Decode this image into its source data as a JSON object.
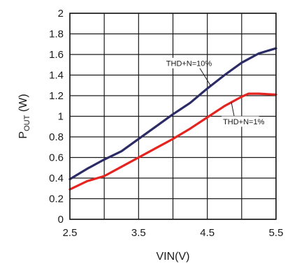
{
  "chart_data": {
    "type": "line",
    "title": "",
    "xlabel": "VIN(V)",
    "ylabel": {
      "main": "P",
      "sub": "OUT",
      "unit": " (W)"
    },
    "xlim": [
      2.5,
      5.5
    ],
    "ylim": [
      0,
      2
    ],
    "xticks": [
      2.5,
      3,
      3.5,
      4,
      4.5,
      5,
      5.5
    ],
    "xtick_labels": [
      "2.5",
      "",
      "3.5",
      "",
      "4.5",
      "",
      "5.5"
    ],
    "yticks": [
      0,
      0.2,
      0.4,
      0.6,
      0.8,
      1,
      1.2,
      1.4,
      1.6,
      1.8,
      2
    ],
    "ytick_labels": [
      "0",
      "0.2",
      "0.4",
      "0.6",
      "0.8",
      "1",
      "1.2",
      "1.4",
      "1.6",
      "1.8",
      "2"
    ],
    "grid": true,
    "legend": "none",
    "series": [
      {
        "name": "THD+N=10%",
        "color": "#2b2b66",
        "x": [
          2.5,
          2.75,
          3.0,
          3.25,
          3.5,
          3.75,
          4.0,
          4.25,
          4.5,
          4.75,
          5.0,
          5.25,
          5.5
        ],
        "y": [
          0.39,
          0.49,
          0.58,
          0.66,
          0.78,
          0.9,
          1.02,
          1.13,
          1.27,
          1.4,
          1.52,
          1.61,
          1.66
        ]
      },
      {
        "name": "THD+N=1%",
        "color": "#e52420",
        "x": [
          2.5,
          2.75,
          3.0,
          3.25,
          3.5,
          3.75,
          4.0,
          4.25,
          4.5,
          4.75,
          5.0,
          5.1,
          5.25,
          5.5
        ],
        "y": [
          0.29,
          0.37,
          0.42,
          0.51,
          0.6,
          0.69,
          0.78,
          0.88,
          0.99,
          1.1,
          1.19,
          1.22,
          1.22,
          1.21
        ]
      }
    ],
    "annotations": [
      {
        "text": "THD+N=10%",
        "series": 0,
        "at_x": 4.55
      },
      {
        "text": "THD+N=1%",
        "series": 1,
        "at_x": 4.85
      }
    ]
  }
}
